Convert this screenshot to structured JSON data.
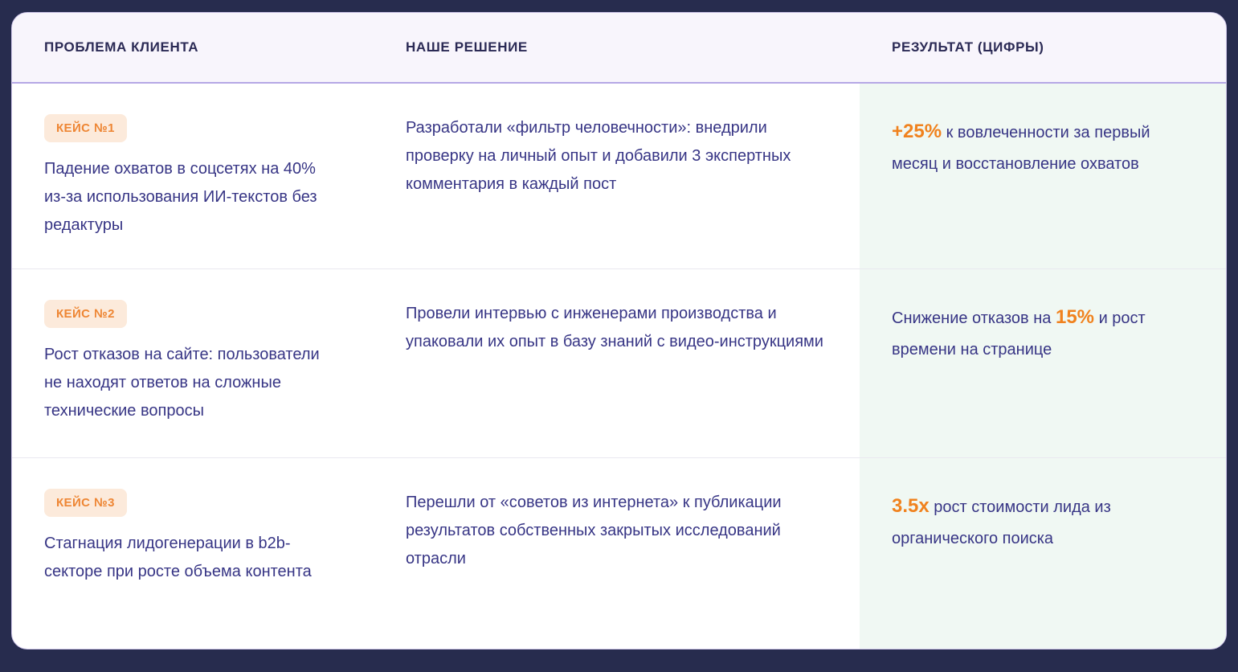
{
  "theme": {
    "page_bg": "#272c4e",
    "card_bg": "#ffffff",
    "header_bg": "#f8f5fc",
    "header_border": "#b5a8e5",
    "result_column_bg": "#f0f8f3",
    "body_text_color": "#373585",
    "header_text_color": "#2b2a55",
    "accent_orange": "#f0821e",
    "badge_bg": "#fceadb",
    "badge_text": "#ee8634"
  },
  "table": {
    "columns": [
      "ПРОБЛЕМА КЛИЕНТА",
      "НАШЕ РЕШЕНИЕ",
      "РЕЗУЛЬТАТ (ЦИФРЫ)"
    ],
    "rows": [
      {
        "badge": "КЕЙС №1",
        "problem": "Падение охватов в соцсетях на 40% из-за использования ИИ-текстов без редактуры",
        "solution": "Разработали «фильтр человечности»: внедрили проверку на личный опыт и добавили 3 экспертных комментария в каждый пост",
        "result": {
          "before": "",
          "highlight": "+25%",
          "after": " к вовлеченности за первый месяц и восстановление охватов"
        }
      },
      {
        "badge": "КЕЙС №2",
        "problem": "Рост отказов на сайте: пользователи не находят ответов на сложные технические вопросы",
        "solution": "Провели интервью с инженерами производства и упаковали их опыт в базу знаний с видео-инструкциями",
        "result": {
          "before": "Снижение отказов на ",
          "highlight": "15%",
          "after": " и рост времени на странице"
        }
      },
      {
        "badge": "КЕЙС №3",
        "problem": "Стагнация лидогенерации в b2b-секторе при росте объема контента",
        "solution": "Перешли от «советов из интернета» к публикации результатов собственных закрытых исследований отрасли",
        "result": {
          "before": "",
          "highlight": "3.5x",
          "after": " рост стоимости лида из органического поиска"
        }
      }
    ]
  }
}
